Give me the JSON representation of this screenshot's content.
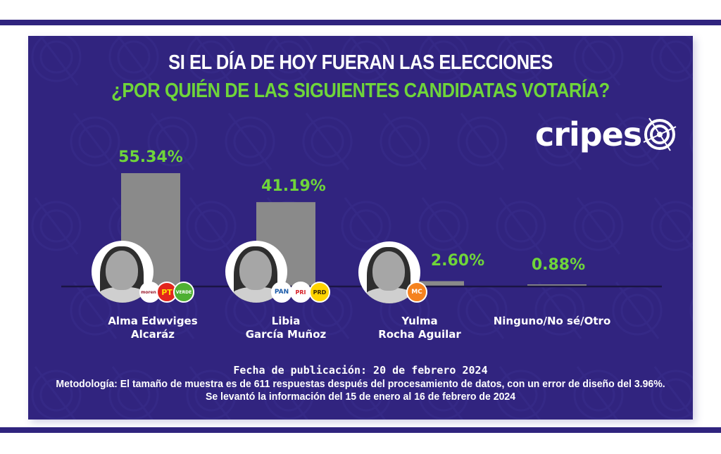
{
  "header": {
    "title_line1": "SI EL DÍA DE HOY FUERAN LAS ELECCIONES",
    "title_line2": "¿POR QUIÉN DE LAS SIGUIENTES CANDIDATAS VOTARÍA?"
  },
  "brand": {
    "logo_text": "cripes",
    "logo_icon": "target-crosshair-icon"
  },
  "colors": {
    "background": "#31247f",
    "stripe": "#30247e",
    "bar": "#8a8a8a",
    "accent_green": "#6fd53a",
    "baseline": "#1a1445"
  },
  "chart_data": {
    "type": "bar",
    "title": "SI EL DÍA DE HOY FUERAN LAS ELECCIONES ¿POR QUIÉN DE LAS SIGUIENTES CANDIDATAS VOTARÍA?",
    "xlabel": "",
    "ylabel": "",
    "ylim": [
      0,
      60
    ],
    "grid": false,
    "categories": [
      "Alma Edwviges Alcaráz",
      "Libia García Muñoz",
      "Yulma Rocha Aguilar",
      "Ninguno/No sé/Otro"
    ],
    "values": [
      55.34,
      41.19,
      2.6,
      0.88
    ],
    "labels": [
      "55.34%",
      "41.19%",
      "2.60%",
      "0.88%"
    ]
  },
  "candidates": [
    {
      "name_line1": "Alma Edwviges",
      "name_line2": "Alcaráz",
      "pct_label": "55.34%",
      "parties": [
        {
          "label": "morena",
          "icon": "morena-logo-icon",
          "bg": "#ffffff",
          "fg": "#9b1c2e"
        },
        {
          "label": "PT",
          "icon": "pt-logo-icon",
          "bg": "#e3261d",
          "fg": "#ffe000"
        },
        {
          "label": "VERDE",
          "icon": "verde-logo-icon",
          "bg": "#4fb033",
          "fg": "#ffffff"
        }
      ]
    },
    {
      "name_line1": "Libia",
      "name_line2": "García Muñoz",
      "pct_label": "41.19%",
      "parties": [
        {
          "label": "PAN",
          "icon": "pan-logo-icon",
          "bg": "#ffffff",
          "fg": "#1a5aa8"
        },
        {
          "label": "PRI",
          "icon": "pri-logo-icon",
          "bg": "#ffffff",
          "fg": "#d62027"
        },
        {
          "label": "PRD",
          "icon": "prd-logo-icon",
          "bg": "#ffd400",
          "fg": "#3a2a00"
        }
      ]
    },
    {
      "name_line1": "Yulma",
      "name_line2": "Rocha Aguilar",
      "pct_label": "2.60%",
      "parties": [
        {
          "label": "MC",
          "icon": "movimiento-ciudadano-logo-icon",
          "bg": "#f5821f",
          "fg": "#ffffff"
        }
      ]
    },
    {
      "name_line1": "Ninguno/No sé/Otro",
      "name_line2": "",
      "pct_label": "0.88%",
      "parties": []
    }
  ],
  "footer": {
    "publication": "Fecha de publicación: 20 de febrero 2024",
    "methodology": "Metodología: El tamaño de muestra es de 611 respuestas después del procesamiento de datos, con un error de diseño del 3.96%. Se levantó la información del 15 de enero al 16 de febrero de 2024"
  }
}
